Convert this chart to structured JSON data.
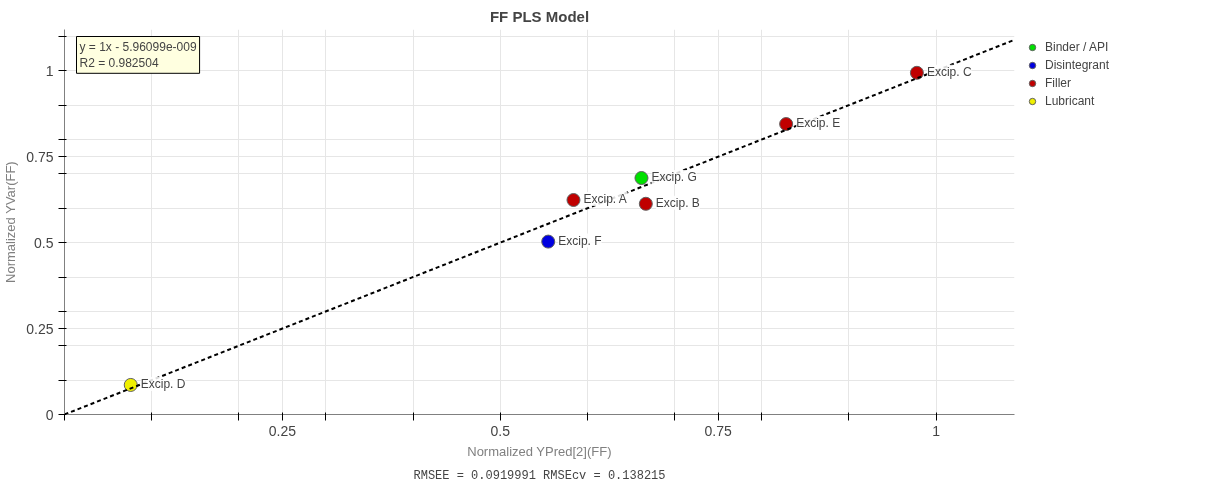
{
  "chart_data": {
    "type": "scatter",
    "title": "FF PLS Model",
    "xlabel": "Normalized YPred[2](FF)",
    "ylabel": "Normalized YVar(FF)",
    "xlim": [
      0,
      1.09
    ],
    "ylim": [
      0,
      1.12
    ],
    "xticks": [
      {
        "value": 0,
        "label": null
      },
      {
        "value": 0.1,
        "label": null
      },
      {
        "value": 0.2,
        "label": null
      },
      0.25,
      {
        "value": 0.3,
        "label": null
      },
      {
        "value": 0.4,
        "label": null
      },
      0.5,
      {
        "value": 0.6,
        "label": null
      },
      {
        "value": 0.7,
        "label": null
      },
      0.75,
      {
        "value": 0.8,
        "label": null
      },
      {
        "value": 0.9,
        "label": null
      },
      1
    ],
    "yticks": [
      0,
      {
        "value": 0.1,
        "label": null
      },
      {
        "value": 0.2,
        "label": null
      },
      0.25,
      {
        "value": 0.3,
        "label": null
      },
      {
        "value": 0.4,
        "label": null
      },
      0.5,
      {
        "value": 0.6,
        "label": null
      },
      {
        "value": 0.7,
        "label": null
      },
      0.75,
      {
        "value": 0.8,
        "label": null
      },
      {
        "value": 0.9,
        "label": null
      },
      1,
      {
        "value": 1.1,
        "label": null
      }
    ],
    "grid": true,
    "legend": "top right",
    "marker": "circle",
    "series": [
      {
        "name": "Binder / API",
        "color": "#00e000",
        "x": [
          0.662
        ],
        "values": [
          0.688
        ]
      },
      {
        "name": "Disintegrant",
        "color": "#0000e0",
        "x": [
          0.555
        ],
        "values": [
          0.503
        ]
      },
      {
        "name": "Filler",
        "color": "#c00000",
        "x": [
          0.584,
          0.667,
          0.828,
          0.978
        ],
        "values": [
          0.624,
          0.613,
          0.845,
          0.994
        ]
      },
      {
        "name": "Lubricant",
        "color": "#f0f000",
        "x": [
          0.076
        ],
        "values": [
          0.086
        ]
      },
      {
        "type": "line",
        "color": "#000000",
        "line_style": "dashed",
        "marker": "none",
        "x": [
          0,
          1.09
        ],
        "values": [
          0,
          1.09
        ]
      }
    ],
    "annotations": [
      "y = 1x - 5.96099e-009",
      "R2 = 0.982504",
      "RMSEE = 0.0919991 RMSEcv = 0.138215",
      {
        "text": "Excip. A",
        "x": 0.584,
        "y": 0.624
      },
      {
        "text": "Excip. B",
        "x": 0.667,
        "y": 0.613
      },
      {
        "text": "Excip. C",
        "x": 0.978,
        "y": 0.994
      },
      {
        "text": "Excip. D",
        "x": 0.076,
        "y": 0.086
      },
      {
        "text": "Excip. E",
        "x": 0.828,
        "y": 0.845
      },
      {
        "text": "Excip. F",
        "x": 0.555,
        "y": 0.503
      },
      {
        "text": "Excip. G",
        "x": 0.662,
        "y": 0.688
      }
    ]
  }
}
